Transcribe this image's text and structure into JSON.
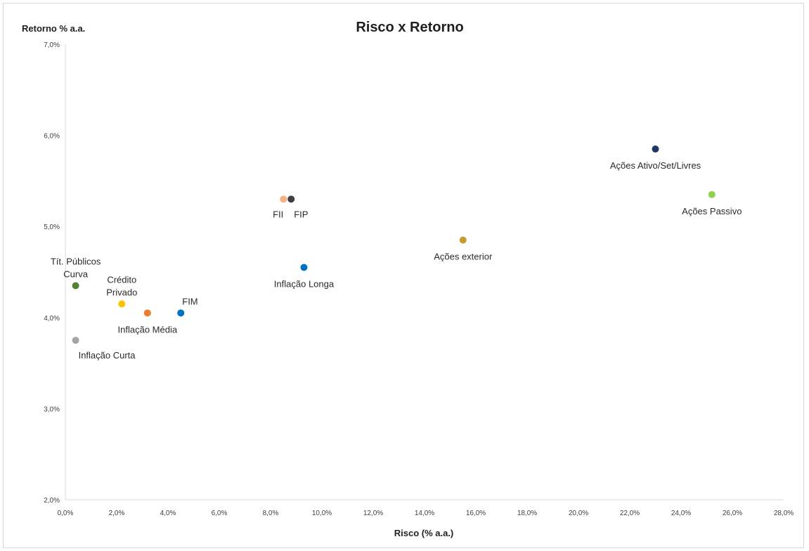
{
  "chart_data": {
    "type": "scatter",
    "title": "Risco x Retorno",
    "xlabel": "Risco (% a.a.)",
    "ylabel": "Retorno % a.a.",
    "xlim": [
      0.0,
      28.0
    ],
    "ylim": [
      2.0,
      7.0
    ],
    "xticks": [
      "0,0%",
      "2,0%",
      "4,0%",
      "6,0%",
      "8,0%",
      "10,0%",
      "12,0%",
      "14,0%",
      "16,0%",
      "18,0%",
      "20,0%",
      "22,0%",
      "24,0%",
      "26,0%",
      "28,0%"
    ],
    "yticks": [
      "2,0%",
      "3,0%",
      "4,0%",
      "5,0%",
      "6,0%",
      "7,0%"
    ],
    "grid": false,
    "points": [
      {
        "label": [
          "Tít. Públicos",
          "Curva"
        ],
        "x": 0.4,
        "y": 4.35,
        "color": "#548235",
        "label_pos": "above"
      },
      {
        "label": [
          "Crédito",
          "Privado"
        ],
        "x": 2.2,
        "y": 4.15,
        "color": "#ffc000",
        "label_pos": "above"
      },
      {
        "label": [
          "Inflação Curta"
        ],
        "x": 0.4,
        "y": 3.75,
        "color": "#a5a5a5",
        "label_pos": "below-right"
      },
      {
        "label": [
          "Inflação Média"
        ],
        "x": 3.2,
        "y": 4.05,
        "color": "#ed7d31",
        "label_pos": "below"
      },
      {
        "label": [
          "FIM"
        ],
        "x": 4.5,
        "y": 4.05,
        "color": "#0070c0",
        "label_pos": "above-right"
      },
      {
        "label": [
          "FII"
        ],
        "x": 8.5,
        "y": 5.3,
        "color": "#f4b183",
        "label_pos": "below-left"
      },
      {
        "label": [
          "FIP"
        ],
        "x": 8.8,
        "y": 5.3,
        "color": "#404040",
        "label_pos": "below-right"
      },
      {
        "label": [
          "Inflação Longa"
        ],
        "x": 9.3,
        "y": 4.55,
        "color": "#0070c0",
        "label_pos": "below"
      },
      {
        "label": [
          "Ações exterior"
        ],
        "x": 15.5,
        "y": 4.85,
        "color": "#c89b2f",
        "label_pos": "below"
      },
      {
        "label": [
          "Ações Ativo/Set/Livres"
        ],
        "x": 23.0,
        "y": 5.85,
        "color": "#203864",
        "label_pos": "below"
      },
      {
        "label": [
          "Ações Passivo"
        ],
        "x": 25.2,
        "y": 5.35,
        "color": "#92d050",
        "label_pos": "below"
      }
    ]
  }
}
